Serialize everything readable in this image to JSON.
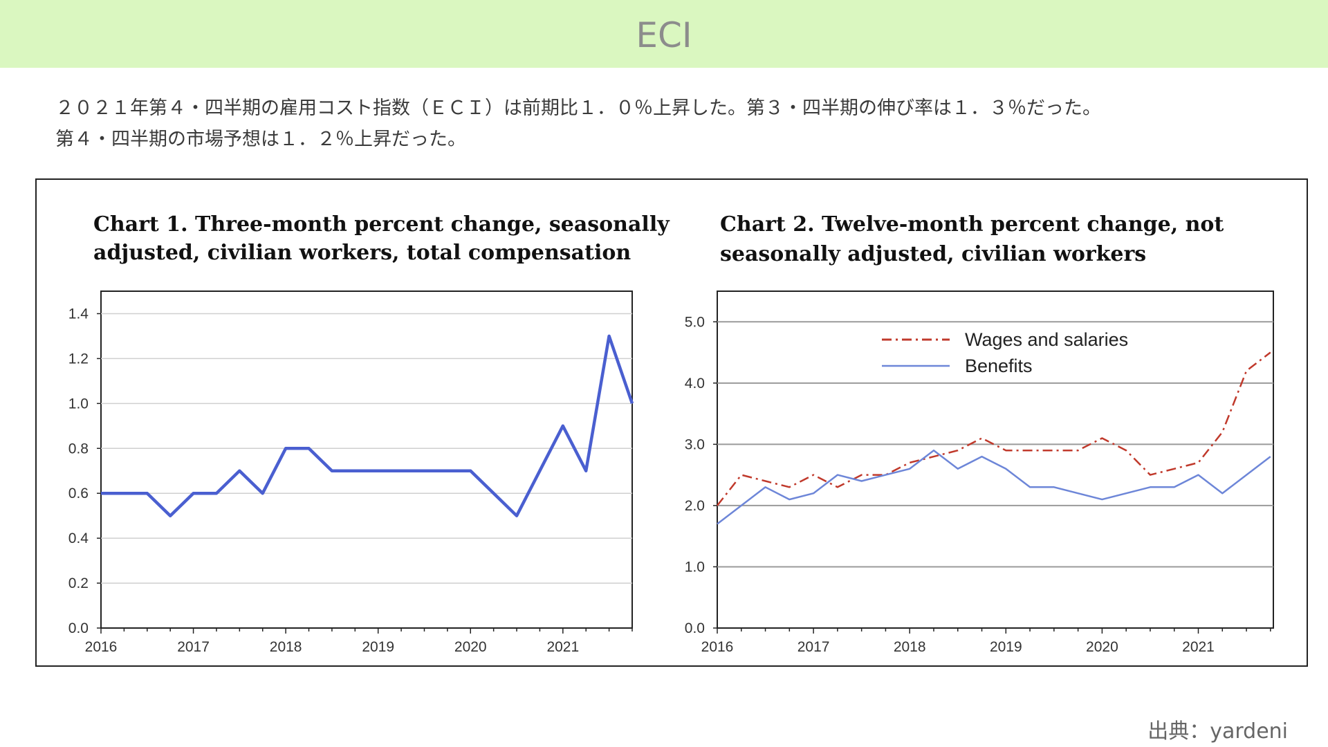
{
  "page": {
    "title": "ECI"
  },
  "description": {
    "line1": "２０２１年第４・四半期の雇用コスト指数（ＥＣＩ）は前期比１．０％上昇した。第３・四半期の伸び率は１．３％だった。",
    "line2": "第４・四半期の市場予想は１．２％上昇だった。"
  },
  "source": "出典：yardeni",
  "chart_data": [
    {
      "type": "line",
      "title_line1": "Chart 1. Three-month percent change, seasonally",
      "title_line2": "adjusted, civilian workers, total compensation",
      "x": [
        2016.0,
        2016.25,
        2016.5,
        2016.75,
        2017.0,
        2017.25,
        2017.5,
        2017.75,
        2018.0,
        2018.25,
        2018.5,
        2018.75,
        2019.0,
        2019.25,
        2019.5,
        2019.75,
        2020.0,
        2020.25,
        2020.5,
        2020.75,
        2021.0,
        2021.25,
        2021.5,
        2021.75
      ],
      "series": [
        {
          "values": [
            0.6,
            0.6,
            0.6,
            0.5,
            0.6,
            0.6,
            0.7,
            0.6,
            0.8,
            0.8,
            0.7,
            0.7,
            0.7,
            0.7,
            0.7,
            0.7,
            0.7,
            0.6,
            0.5,
            0.7,
            0.9,
            0.7,
            1.3,
            1.0
          ],
          "color": "#4a5fd0"
        }
      ],
      "xlim": [
        2016,
        2021.75
      ],
      "ylim": [
        0,
        1.5
      ],
      "xticks": [
        "2016",
        "2017",
        "2018",
        "2019",
        "2020",
        "2021"
      ],
      "yticks": [
        "0.0",
        "0.2",
        "0.4",
        "0.6",
        "0.8",
        "1.0",
        "1.2",
        "1.4"
      ],
      "grid": true
    },
    {
      "type": "line",
      "title_line1": "Chart 2. Twelve-month percent change, not",
      "title_line2": "seasonally adjusted, civilian workers",
      "x": [
        2016.0,
        2016.25,
        2016.5,
        2016.75,
        2017.0,
        2017.25,
        2017.5,
        2017.75,
        2018.0,
        2018.25,
        2018.5,
        2018.75,
        2019.0,
        2019.25,
        2019.5,
        2019.75,
        2020.0,
        2020.25,
        2020.5,
        2020.75,
        2021.0,
        2021.25,
        2021.5,
        2021.75
      ],
      "series": [
        {
          "name": "Wages and salaries",
          "values": [
            2.0,
            2.5,
            2.4,
            2.3,
            2.5,
            2.3,
            2.5,
            2.5,
            2.7,
            2.8,
            2.9,
            3.1,
            2.9,
            2.9,
            2.9,
            2.9,
            3.1,
            2.9,
            2.5,
            2.6,
            2.7,
            3.2,
            4.2,
            4.5
          ],
          "color": "#c0392b",
          "dash": "dash-dot"
        },
        {
          "name": "Benefits",
          "values": [
            1.7,
            2.0,
            2.3,
            2.1,
            2.2,
            2.5,
            2.4,
            2.5,
            2.6,
            2.9,
            2.6,
            2.8,
            2.6,
            2.3,
            2.3,
            2.2,
            2.1,
            2.2,
            2.3,
            2.3,
            2.5,
            2.2,
            2.5,
            2.8
          ],
          "color": "#6d86d8",
          "dash": "solid"
        }
      ],
      "xlim": [
        2016,
        2021.75
      ],
      "ylim": [
        0,
        5.5
      ],
      "xticks": [
        "2016",
        "2017",
        "2018",
        "2019",
        "2020",
        "2021"
      ],
      "yticks": [
        "0.0",
        "1.0",
        "2.0",
        "3.0",
        "4.0",
        "5.0"
      ],
      "grid": true,
      "legend": "top-center"
    }
  ]
}
